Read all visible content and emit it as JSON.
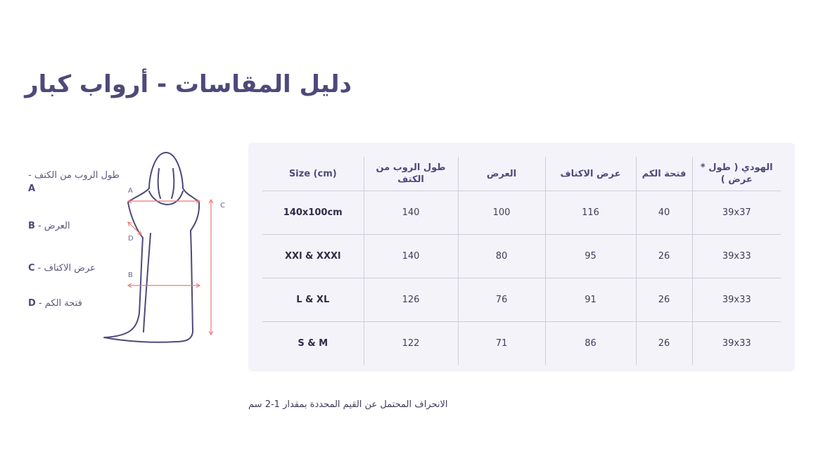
{
  "title": "دليل المقاسات - أرواب كبار",
  "legend": [
    {
      "letter": "A",
      "sep": " - ",
      "label": "طول الروب من الكتف"
    },
    {
      "letter": "B",
      "sep": " - ",
      "label": "العرض"
    },
    {
      "letter": "C",
      "sep": " - ",
      "label": "عرض الاكتاف"
    },
    {
      "letter": "D",
      "sep": " - ",
      "label": "فتحة الكم"
    }
  ],
  "diagram_labels": {
    "a": "A",
    "b": "B",
    "c": "C",
    "d": "D"
  },
  "table": {
    "headers": [
      "Size (cm)",
      "طول الروب من الكتف",
      "العرض",
      "عرض الاكتاف",
      "فتحة الكم",
      "الهودي ( طول * عرض )"
    ],
    "rows": [
      [
        "140x100cm",
        "140",
        "100",
        "116",
        "40",
        "39x37"
      ],
      [
        "XXl & XXXl",
        "140",
        "80",
        "95",
        "26",
        "39x33"
      ],
      [
        "L & XL",
        "126",
        "76",
        "91",
        "26",
        "39x33"
      ],
      [
        "S & M",
        "122",
        "71",
        "86",
        "26",
        "39x33"
      ]
    ]
  },
  "note": "الانحراف المحتمل عن القيم المحددة بمقدار 1-2 سم",
  "colors": {
    "title": "#4d4a7a",
    "outline": "#4d4a7a",
    "arrow": "#e97b72",
    "card": "#f4f3fa"
  }
}
